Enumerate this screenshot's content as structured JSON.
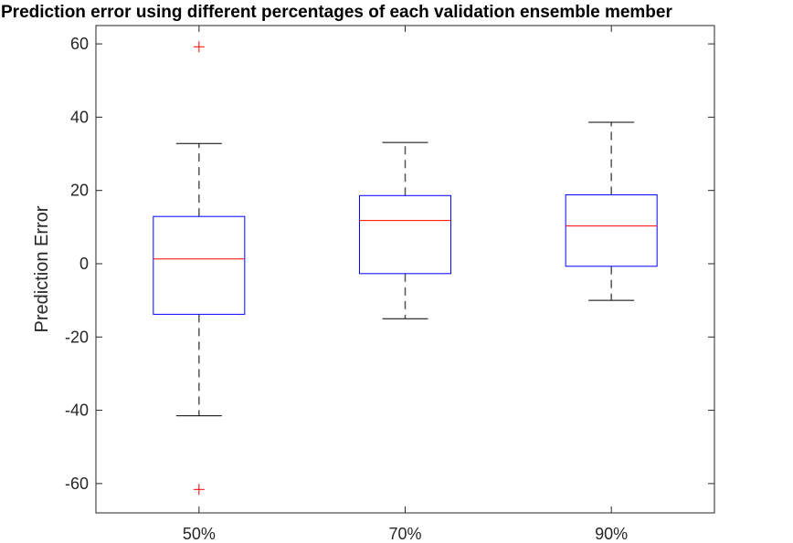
{
  "chart_data": {
    "type": "box",
    "title": "Prediction error using different percentages of each validation ensemble member",
    "xlabel": "",
    "ylabel": "Prediction Error",
    "ylim": [
      -68,
      65
    ],
    "yticks": [
      -60,
      -40,
      -20,
      0,
      20,
      40,
      60
    ],
    "grid": false,
    "categories": [
      "50%",
      "70%",
      "90%"
    ],
    "boxes": [
      {
        "category": "50%",
        "whisker_low": -41.5,
        "q1": -13.8,
        "median": 1.3,
        "q3": 12.9,
        "whisker_high": 32.8,
        "outliers": [
          59.2,
          -61.6
        ]
      },
      {
        "category": "70%",
        "whisker_low": -15.0,
        "q1": -2.7,
        "median": 11.8,
        "q3": 18.6,
        "whisker_high": 33.1,
        "outliers": []
      },
      {
        "category": "90%",
        "whisker_low": -10.0,
        "q1": -0.7,
        "median": 10.3,
        "q3": 18.8,
        "whisker_high": 38.6,
        "outliers": []
      }
    ],
    "colors": {
      "box": "#0000ff",
      "median": "#ff0000",
      "whisker": "#000000",
      "whisker_stem": "#555555",
      "outlier": "#ff0000",
      "axes": "#262626"
    }
  }
}
